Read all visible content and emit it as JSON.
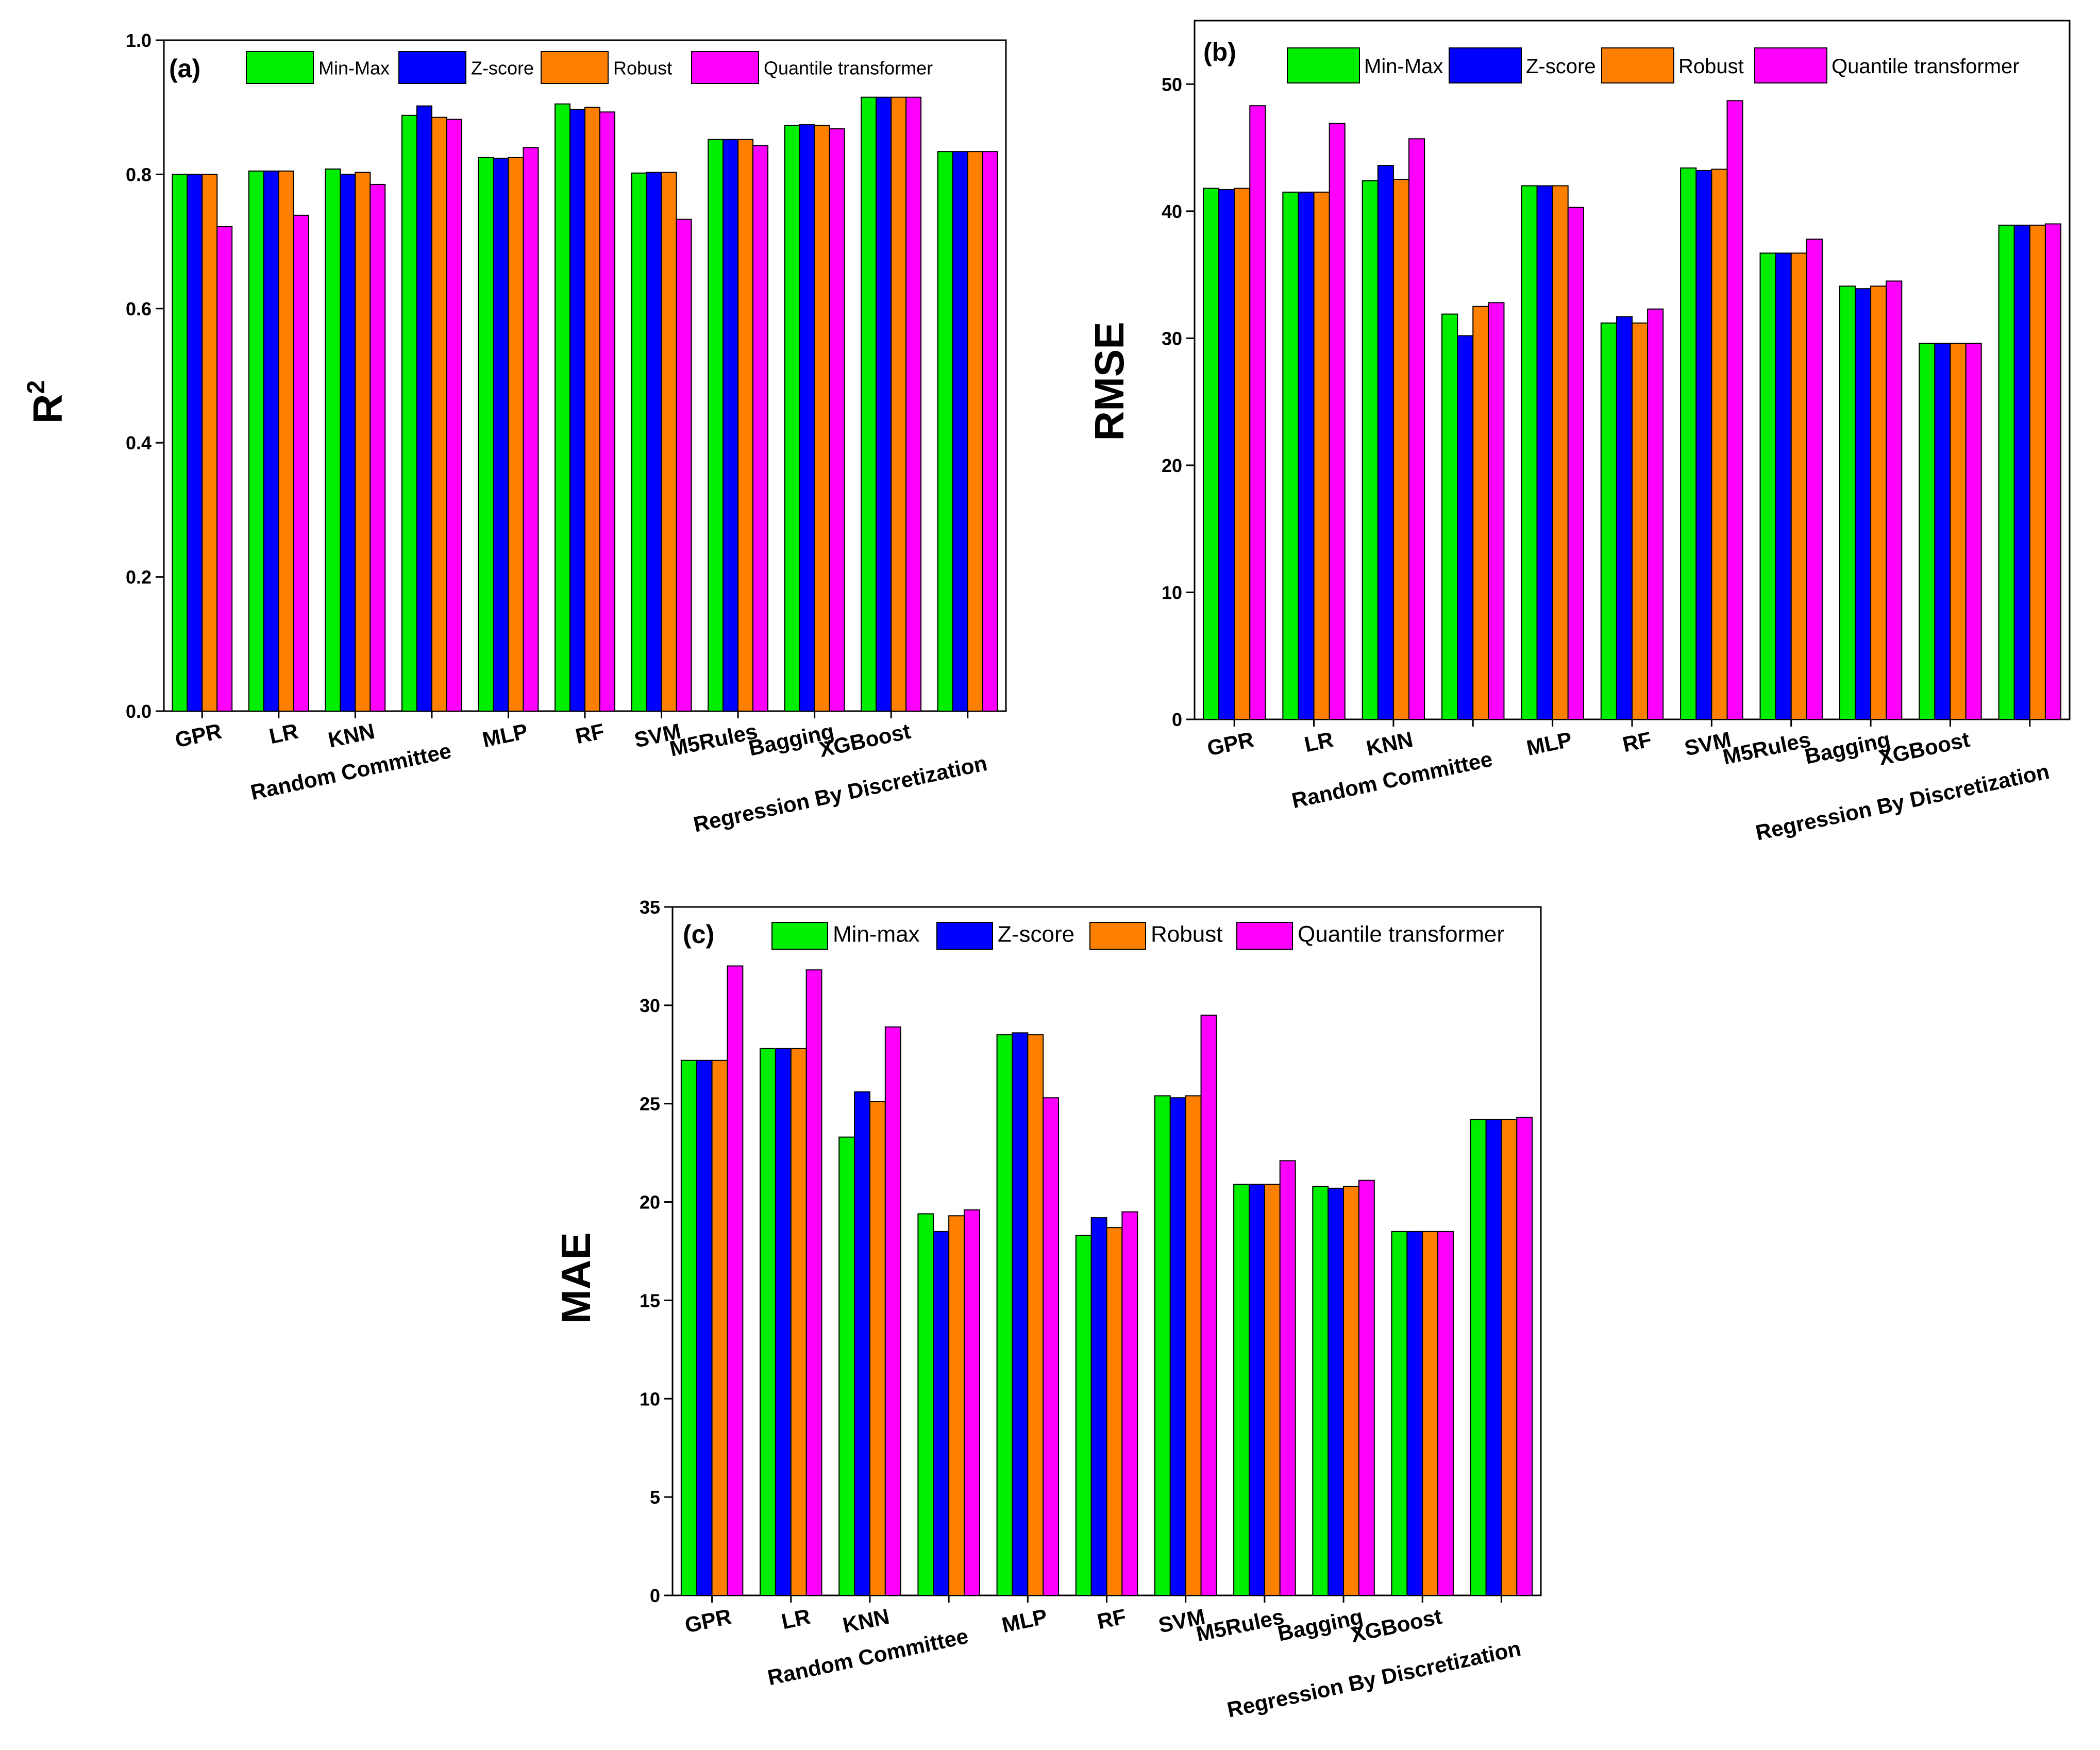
{
  "chart_data": [
    {
      "type": "bar",
      "panel_label": "(a)",
      "ylabel": "R",
      "ylabel_sup": "2",
      "ylim": [
        0,
        1.0
      ],
      "yticks": [
        "0.0",
        "0.2",
        "0.4",
        "0.6",
        "0.8",
        "1.0"
      ],
      "ytick_values": [
        0,
        0.2,
        0.4,
        0.6,
        0.8,
        1.0
      ],
      "legend_position": "top",
      "categories": [
        "GPR",
        "LR",
        "KNN",
        "Random Committee",
        "MLP",
        "RF",
        "SVM",
        "M5Rules",
        "Bagging",
        "XGBoost",
        "Regression By Discretization"
      ],
      "series": [
        {
          "name": "Min-Max",
          "color": "#00ee00",
          "values": [
            0.8,
            0.805,
            0.808,
            0.888,
            0.825,
            0.905,
            0.802,
            0.852,
            0.873,
            0.915,
            0.834
          ]
        },
        {
          "name": "Z-score",
          "color": "#0000ff",
          "values": [
            0.8,
            0.805,
            0.8,
            0.902,
            0.824,
            0.897,
            0.803,
            0.852,
            0.874,
            0.915,
            0.834
          ]
        },
        {
          "name": "Robust",
          "color": "#ff8000",
          "values": [
            0.8,
            0.805,
            0.803,
            0.885,
            0.825,
            0.9,
            0.803,
            0.852,
            0.873,
            0.915,
            0.834
          ]
        },
        {
          "name": "Quantile transformer",
          "color": "#ff00ff",
          "values": [
            0.722,
            0.739,
            0.785,
            0.882,
            0.84,
            0.893,
            0.733,
            0.843,
            0.868,
            0.915,
            0.834
          ]
        }
      ]
    },
    {
      "type": "bar",
      "panel_label": "(b)",
      "ylabel": "RMSE",
      "ylim": [
        0,
        55
      ],
      "yticks": [
        "0",
        "10",
        "20",
        "30",
        "40",
        "50"
      ],
      "ytick_values": [
        0,
        10,
        20,
        30,
        40,
        50
      ],
      "legend_position": "top",
      "categories": [
        "GPR",
        "LR",
        "KNN",
        "Random Committee",
        "MLP",
        "RF",
        "SVM",
        "M5Rules",
        "Bagging",
        "XGBoost",
        "Regression By Discretization"
      ],
      "series": [
        {
          "name": "Min-Max",
          "color": "#00ee00",
          "values": [
            41.8,
            41.5,
            42.4,
            31.9,
            42.0,
            31.2,
            43.4,
            36.7,
            34.1,
            29.6,
            38.9
          ]
        },
        {
          "name": "Z-score",
          "color": "#0000ff",
          "values": [
            41.7,
            41.5,
            43.6,
            30.2,
            42.0,
            31.7,
            43.2,
            36.7,
            33.9,
            29.6,
            38.9
          ]
        },
        {
          "name": "Robust",
          "color": "#ff8000",
          "values": [
            41.8,
            41.5,
            42.5,
            32.5,
            42.0,
            31.2,
            43.3,
            36.7,
            34.1,
            29.6,
            38.9
          ]
        },
        {
          "name": "Quantile transformer",
          "color": "#ff00ff",
          "values": [
            48.3,
            46.9,
            45.7,
            32.8,
            40.3,
            32.3,
            48.7,
            37.8,
            34.5,
            29.6,
            39.0
          ]
        }
      ]
    },
    {
      "type": "bar",
      "panel_label": "(c)",
      "ylabel": "MAE",
      "ylim": [
        0,
        35
      ],
      "yticks": [
        "0",
        "5",
        "10",
        "15",
        "20",
        "25",
        "30",
        "35"
      ],
      "ytick_values": [
        0,
        5,
        10,
        15,
        20,
        25,
        30,
        35
      ],
      "legend_position": "top",
      "categories": [
        "GPR",
        "LR",
        "KNN",
        "Random Committee",
        "MLP",
        "RF",
        "SVM",
        "M5Rules",
        "Bagging",
        "XGBoost",
        "Regression By Discretization"
      ],
      "series": [
        {
          "name": "Min-max",
          "color": "#00ee00",
          "values": [
            27.2,
            27.8,
            23.3,
            19.4,
            28.5,
            18.3,
            25.4,
            20.9,
            20.8,
            18.5,
            24.2
          ]
        },
        {
          "name": "Z-score",
          "color": "#0000ff",
          "values": [
            27.2,
            27.8,
            25.6,
            18.5,
            28.6,
            19.2,
            25.3,
            20.9,
            20.7,
            18.5,
            24.2
          ]
        },
        {
          "name": "Robust",
          "color": "#ff8000",
          "values": [
            27.2,
            27.8,
            25.1,
            19.3,
            28.5,
            18.7,
            25.4,
            20.9,
            20.8,
            18.5,
            24.2
          ]
        },
        {
          "name": "Quantile transformer",
          "color": "#ff00ff",
          "values": [
            32.0,
            31.8,
            28.9,
            19.6,
            25.3,
            19.5,
            29.5,
            22.1,
            21.1,
            18.5,
            24.3
          ]
        }
      ]
    }
  ]
}
